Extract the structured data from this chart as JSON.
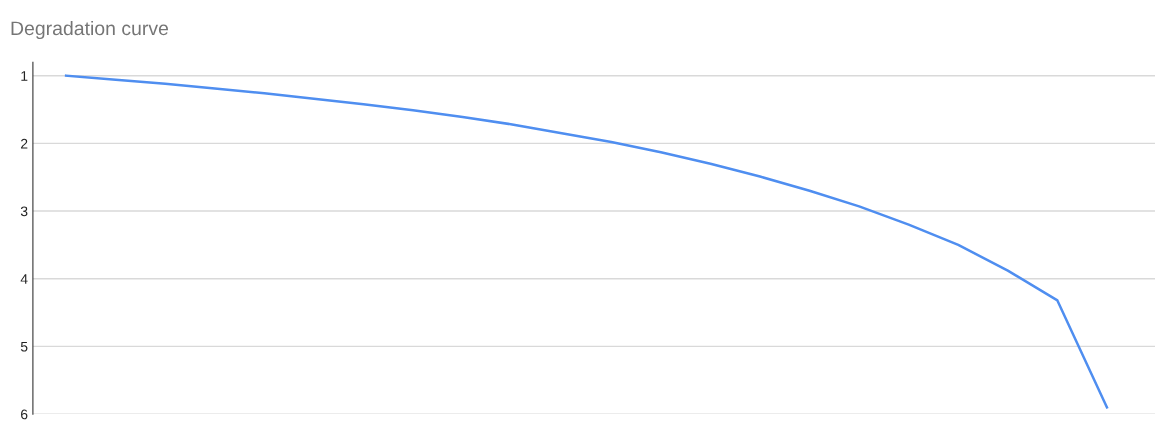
{
  "chart_data": {
    "type": "line",
    "title": "Degradation curve",
    "categories": [
      null,
      null,
      null,
      null,
      null,
      null,
      null,
      null,
      null,
      null,
      null,
      null,
      null,
      null,
      null,
      null,
      null,
      null,
      null,
      null,
      null,
      null
    ],
    "series": [
      {
        "color": "#4f8ef0",
        "values": [
          1.0,
          1.06,
          1.12,
          1.19,
          1.26,
          1.34,
          1.42,
          1.51,
          1.61,
          1.72,
          1.85,
          1.98,
          2.13,
          2.3,
          2.49,
          2.7,
          2.93,
          3.2,
          3.5,
          3.88,
          4.32,
          5.9
        ]
      }
    ],
    "ylim": [
      6,
      0.8
    ],
    "yticks": [
      1,
      2,
      3,
      4,
      5,
      6
    ],
    "grid": "y",
    "tick_labels": "y",
    "marker": "none",
    "line_style": "solid"
  }
}
